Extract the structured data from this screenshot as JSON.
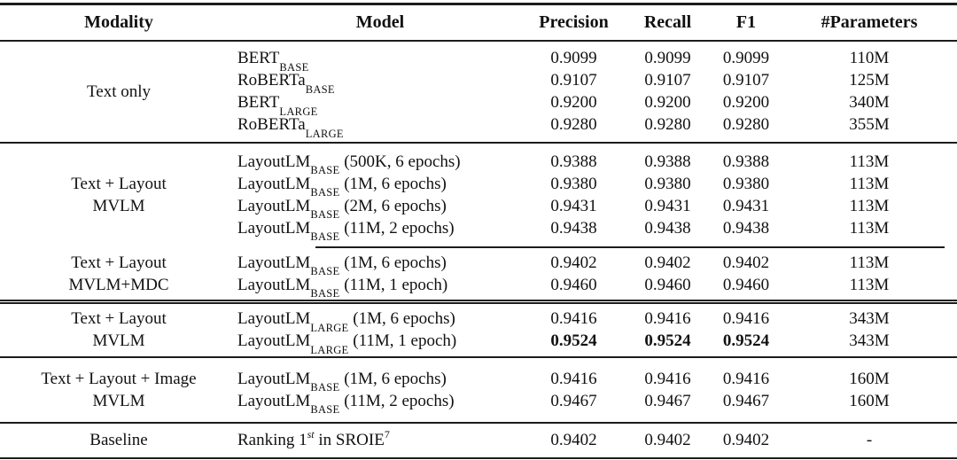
{
  "table": {
    "headers": {
      "modality": "Modality",
      "model": "Model",
      "precision": "Precision",
      "recall": "Recall",
      "f1": "F1",
      "parameters": "#Parameters"
    },
    "sections": [
      {
        "modality_lines": [
          "Text only"
        ],
        "rows": [
          {
            "model_main": "BERT",
            "model_sub": "BASE",
            "model_rest": "",
            "precision": "0.9099",
            "recall": "0.9099",
            "f1": "0.9099",
            "params": "110M"
          },
          {
            "model_main": "RoBERTa",
            "model_sub": "BASE",
            "model_rest": "",
            "precision": "0.9107",
            "recall": "0.9107",
            "f1": "0.9107",
            "params": "125M"
          },
          {
            "model_main": "BERT",
            "model_sub": "LARGE",
            "model_rest": "",
            "precision": "0.9200",
            "recall": "0.9200",
            "f1": "0.9200",
            "params": "340M"
          },
          {
            "model_main": "RoBERTa",
            "model_sub": "LARGE",
            "model_rest": "",
            "precision": "0.9280",
            "recall": "0.9280",
            "f1": "0.9280",
            "params": "355M"
          }
        ]
      },
      {
        "modality_lines": [
          "Text + Layout",
          "MVLM"
        ],
        "rows": [
          {
            "model_main": "LayoutLM",
            "model_sub": "BASE",
            "model_rest": " (500K, 6 epochs)",
            "precision": "0.9388",
            "recall": "0.9388",
            "f1": "0.9388",
            "params": "113M"
          },
          {
            "model_main": "LayoutLM",
            "model_sub": "BASE",
            "model_rest": " (1M, 6 epochs)",
            "precision": "0.9380",
            "recall": "0.9380",
            "f1": "0.9380",
            "params": "113M"
          },
          {
            "model_main": "LayoutLM",
            "model_sub": "BASE",
            "model_rest": " (2M, 6 epochs)",
            "precision": "0.9431",
            "recall": "0.9431",
            "f1": "0.9431",
            "params": "113M"
          },
          {
            "model_main": "LayoutLM",
            "model_sub": "BASE",
            "model_rest": " (11M, 2 epochs)",
            "precision": "0.9438",
            "recall": "0.9438",
            "f1": "0.9438",
            "params": "113M"
          }
        ]
      },
      {
        "modality_lines": [
          "Text + Layout",
          "MVLM+MDC"
        ],
        "rows": [
          {
            "model_main": "LayoutLM",
            "model_sub": "BASE",
            "model_rest": " (1M, 6 epochs)",
            "precision": "0.9402",
            "recall": "0.9402",
            "f1": "0.9402",
            "params": "113M"
          },
          {
            "model_main": "LayoutLM",
            "model_sub": "BASE",
            "model_rest": " (11M, 1 epoch)",
            "precision": "0.9460",
            "recall": "0.9460",
            "f1": "0.9460",
            "params": "113M"
          }
        ]
      },
      {
        "modality_lines": [
          "Text + Layout",
          "MVLM"
        ],
        "rows": [
          {
            "model_main": "LayoutLM",
            "model_sub": "LARGE",
            "model_rest": " (1M, 6 epochs)",
            "precision": "0.9416",
            "recall": "0.9416",
            "f1": "0.9416",
            "params": "343M"
          },
          {
            "model_main": "LayoutLM",
            "model_sub": "LARGE",
            "model_rest": " (11M, 1 epoch)",
            "precision": "0.9524",
            "recall": "0.9524",
            "f1": "0.9524",
            "params": "343M"
          }
        ]
      },
      {
        "modality_lines": [
          "Text + Layout + Image",
          "MVLM"
        ],
        "rows": [
          {
            "model_main": "LayoutLM",
            "model_sub": "BASE",
            "model_rest": " (1M, 6 epochs)",
            "precision": "0.9416",
            "recall": "0.9416",
            "f1": "0.9416",
            "params": "160M"
          },
          {
            "model_main": "LayoutLM",
            "model_sub": "BASE",
            "model_rest": " (11M, 2 epochs)",
            "precision": "0.9467",
            "recall": "0.9467",
            "f1": "0.9467",
            "params": "160M"
          }
        ]
      }
    ],
    "baseline": {
      "modality": "Baseline",
      "model_t1": "Ranking 1",
      "model_sup1": "st",
      "model_t2": " in SROIE",
      "model_sup2": "7",
      "precision": "0.9402",
      "recall": "0.9402",
      "f1": "0.9402",
      "params": "-"
    }
  },
  "colors": {
    "rule": "#1c1c1c",
    "text": "#111111",
    "background": "#ffffff"
  }
}
